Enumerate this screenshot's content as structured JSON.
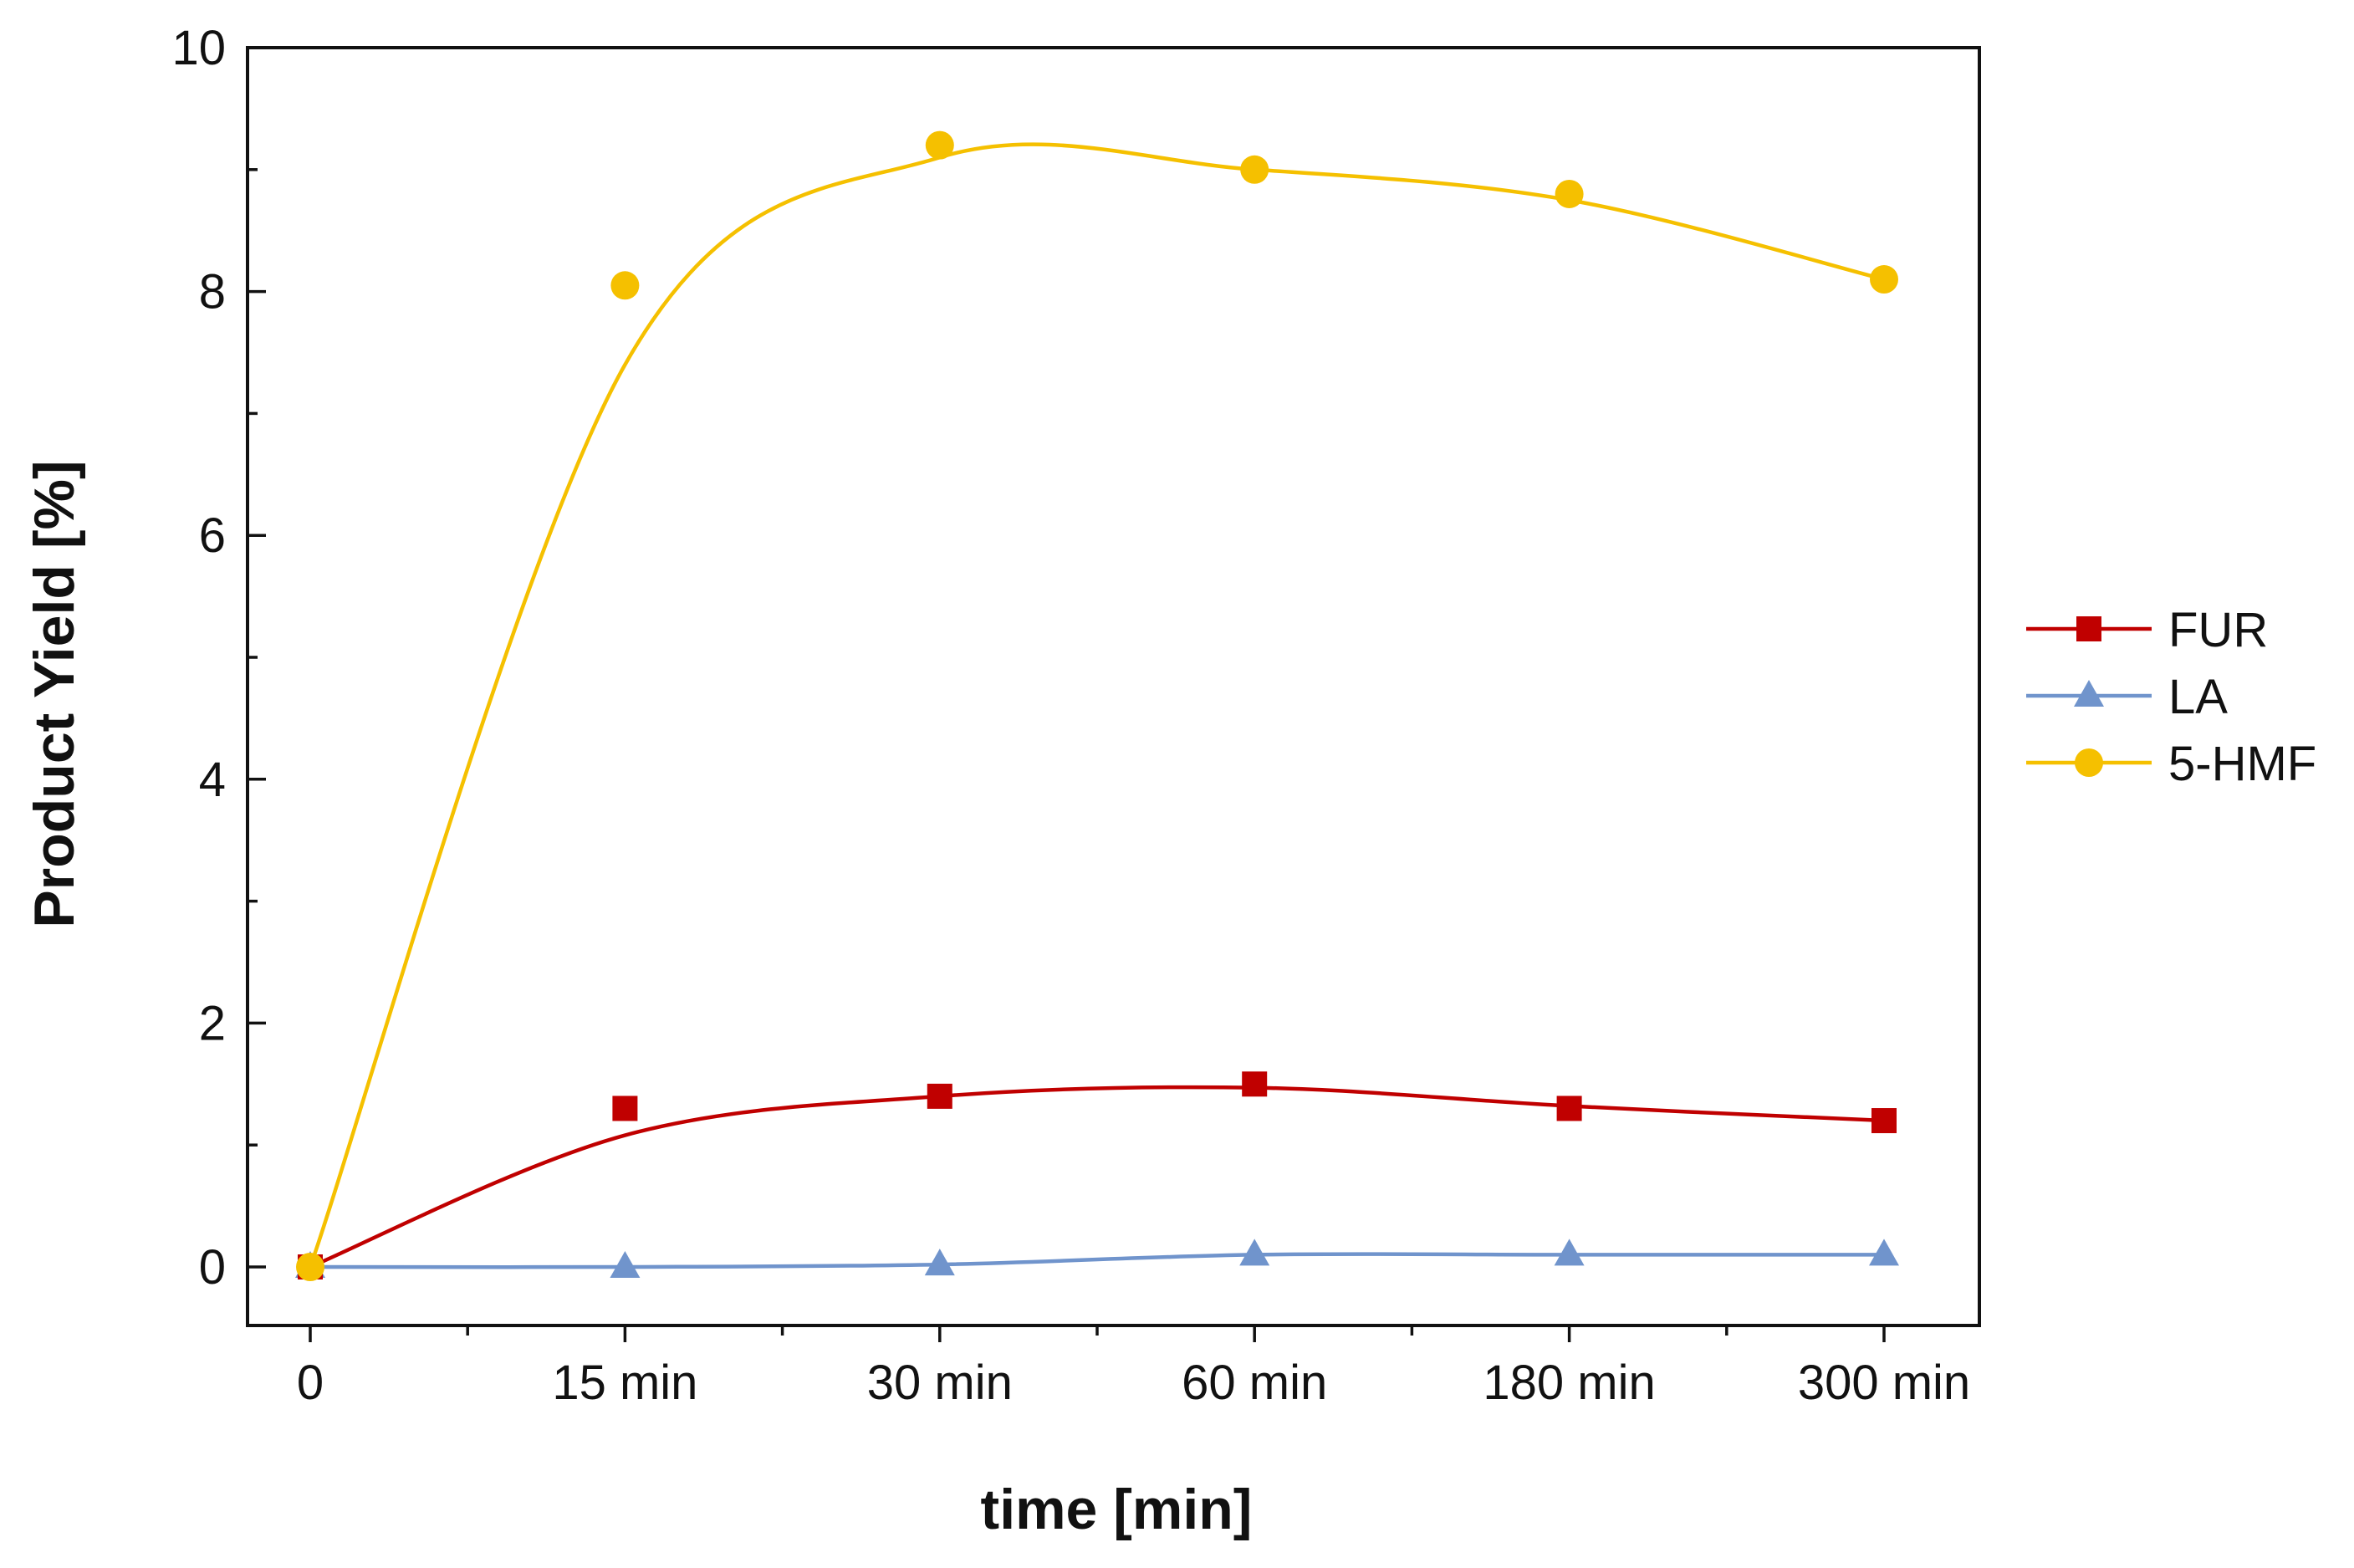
{
  "chart_data": {
    "type": "line",
    "title": "",
    "xlabel": "time [min]",
    "ylabel": "Product Yield [%]",
    "categories": [
      "0",
      "15 min",
      "30 min",
      "60 min",
      "180 min",
      "300 min"
    ],
    "ylim": [
      0,
      10
    ],
    "yticks": [
      "0",
      "2",
      "4",
      "6",
      "8",
      "10"
    ],
    "grid": false,
    "legend_position": "right",
    "series": [
      {
        "name": "FUR",
        "color": "#c00000",
        "marker": "square",
        "values": [
          0.0,
          1.3,
          1.4,
          1.5,
          1.3,
          1.2
        ]
      },
      {
        "name": "LA",
        "color": "#7094cc",
        "marker": "triangle",
        "values": [
          0.0,
          0.0,
          0.02,
          0.1,
          0.1,
          0.1
        ]
      },
      {
        "name": "5-HMF",
        "color": "#f5c000",
        "marker": "circle",
        "values": [
          0.0,
          8.05,
          9.2,
          9.0,
          8.8,
          8.1
        ]
      }
    ],
    "fit_curves": [
      {
        "series": "FUR",
        "values": [
          0.0,
          1.08,
          1.4,
          1.47,
          1.32,
          1.2
        ]
      },
      {
        "series": "LA",
        "values": [
          0.0,
          0.0,
          0.02,
          0.1,
          0.1,
          0.1
        ]
      },
      {
        "series": "5-HMF",
        "values": [
          0.0,
          7.4,
          9.1,
          9.0,
          8.75,
          8.1
        ]
      }
    ]
  }
}
